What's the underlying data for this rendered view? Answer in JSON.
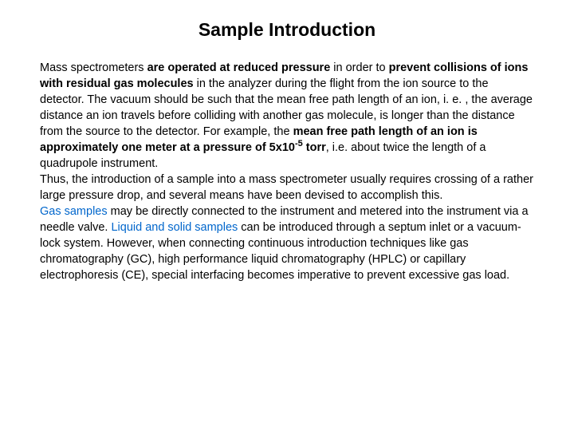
{
  "title": "Sample Introduction",
  "p1_s1a": "Mass spectrometers ",
  "p1_s1b": "are operated at reduced pressure",
  "p1_s1c": " in order to ",
  "p1_s1d": "prevent collisions of ions with residual gas molecules",
  "p1_s1e": " in the analyzer during the flight from the ion source to the detector. The vacuum should be such that the mean free path length of an ion, i. e. , the average distance an ion travels before colliding with another gas molecule, is longer than the distance from the source to the detector. For example, the ",
  "p1_s1f": "mean free path length of an ion is approximately one meter at a pressure of 5x10",
  "p1_s1g": "-5",
  "p1_s1h": " torr",
  "p1_s1i": ", i.e. about twice the length of a quadrupole instrument.",
  "p2": "Thus, the introduction of a sample into a mass spectrometer usually requires crossing of a rather large pressure drop, and several means have been devised to accomplish this.",
  "p3a": "Gas samples",
  "p3b": " may be directly connected to the instrument and metered into the instrument via a needle valve. ",
  "p3c": "Liquid and solid samples",
  "p3d": " can be introduced through a septum inlet or a vacuum-lock system. However, when connecting continuous introduction techniques like gas chromatography (GC), high performance liquid chromatography (HPLC) or capillary electrophoresis (CE), special interfacing becomes imperative to prevent excessive gas load."
}
